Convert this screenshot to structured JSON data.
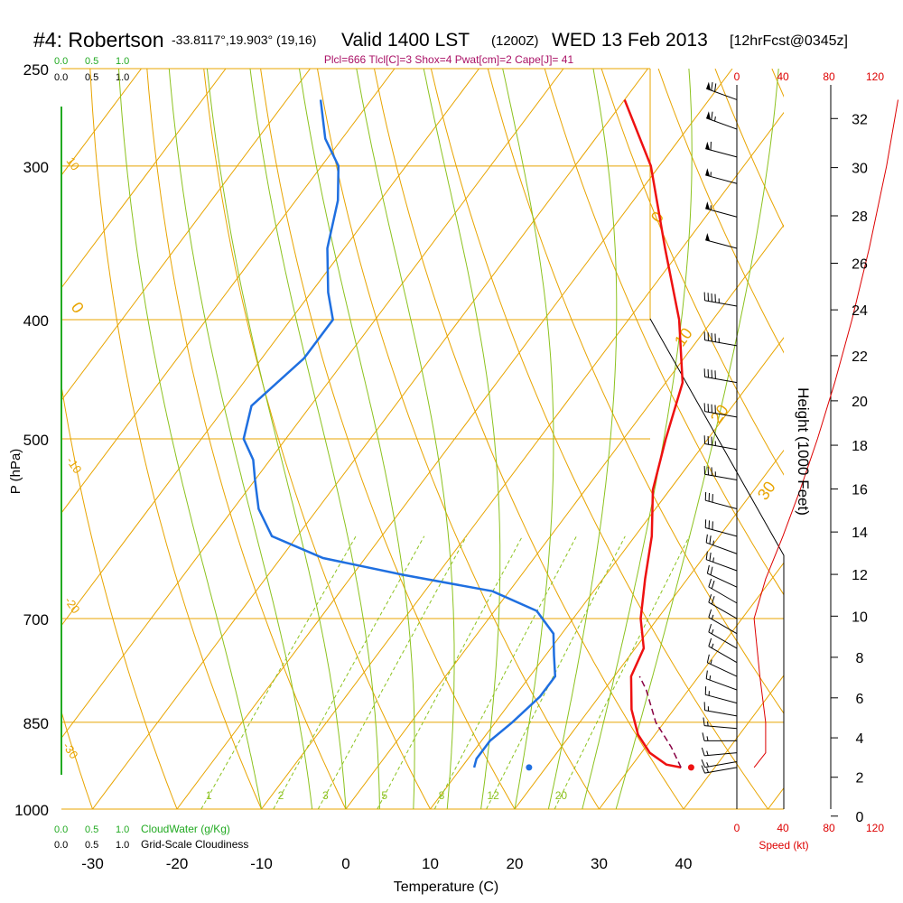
{
  "header": {
    "station": "#4: Robertson",
    "coords": "-33.8117°,19.903° (19,16)",
    "valid": "Valid 1400 LST",
    "utc": "(1200Z)",
    "date": "WED 13 Feb 2013",
    "forecast": "[12hrFcst@0345z]",
    "indices": "Plcl=666 Tlcl[C]=3 Shox=4 Pwat[cm]=2 Cape[J]= 41"
  },
  "colors": {
    "isotherm": "#e8a400",
    "dry_adiabat": "#e8a400",
    "moist_adiabat": "#8cc21e",
    "mixing_ratio": "#8cc21e",
    "temperature": "#ee1111",
    "dewpoint": "#1f6fe0",
    "cloud_axis": "#22aa22",
    "index_text": "#aa1166",
    "parcel": "#880044",
    "wind_speed": "#dd0000"
  },
  "chart_data": {
    "type": "line",
    "title": "#4: Robertson",
    "xlabel": "Temperature (C)",
    "ylabel": "P (hPa)",
    "y2label": "Height (1000 Feet)",
    "speed_label": "Speed (kt)",
    "xlim": [
      -35,
      50
    ],
    "ylim": [
      1000,
      250
    ],
    "x_ticks": [
      "-30",
      "-20",
      "-10",
      "0",
      "10",
      "20",
      "30",
      "40"
    ],
    "pressure_levels": [
      250,
      300,
      400,
      500,
      700,
      850,
      1000
    ],
    "height_ticks": [
      "0",
      "2",
      "4",
      "6",
      "8",
      "10",
      "12",
      "14",
      "16",
      "18",
      "20",
      "22",
      "24",
      "26",
      "28",
      "30",
      "32"
    ],
    "speed_ticks": [
      "0",
      "40",
      "80",
      "120"
    ],
    "cloud_scale_labels": [
      "0.0",
      "0.5",
      "1.0"
    ],
    "cloudwater_label": "CloudWater (g/Kg)",
    "cloudiness_label": "Grid-Scale Cloudiness",
    "mixing_ratio_labels": [
      "1",
      "2",
      "3",
      "5",
      "8",
      "12",
      "20"
    ],
    "dry_adiabat_labels": [
      "-10",
      "0",
      "10",
      "20",
      "30"
    ],
    "isotherm_labels": [
      "10",
      "0",
      "-10",
      "-20",
      "-30"
    ],
    "series": [
      {
        "name": "Temperature",
        "points": [
          [
            36,
            925
          ],
          [
            34,
            920
          ],
          [
            31,
            900
          ],
          [
            28,
            870
          ],
          [
            25,
            830
          ],
          [
            22,
            780
          ],
          [
            21,
            740
          ],
          [
            18,
            700
          ],
          [
            15,
            650
          ],
          [
            12,
            600
          ],
          [
            8,
            550
          ],
          [
            5,
            500
          ],
          [
            2,
            450
          ],
          [
            -4,
            400
          ],
          [
            -12,
            350
          ],
          [
            -21,
            300
          ],
          [
            -30,
            265
          ]
        ]
      },
      {
        "name": "Dewpoint",
        "points": [
          [
            11.5,
            925
          ],
          [
            11,
            910
          ],
          [
            11,
            880
          ],
          [
            12,
            850
          ],
          [
            13,
            810
          ],
          [
            13,
            780
          ],
          [
            11,
            750
          ],
          [
            9,
            720
          ],
          [
            5,
            690
          ],
          [
            -2,
            665
          ],
          [
            -14,
            645
          ],
          [
            -25,
            625
          ],
          [
            -33,
            600
          ],
          [
            -37,
            570
          ],
          [
            -40,
            540
          ],
          [
            -42,
            520
          ],
          [
            -45,
            500
          ],
          [
            -47,
            470
          ],
          [
            -45,
            430
          ],
          [
            -45,
            400
          ],
          [
            -48,
            380
          ],
          [
            -52,
            350
          ],
          [
            -55,
            320
          ],
          [
            -58,
            300
          ],
          [
            -62,
            285
          ],
          [
            -66,
            265
          ]
        ]
      },
      {
        "name": "Parcel",
        "points": [
          [
            36,
            925
          ],
          [
            33,
            890
          ],
          [
            29,
            850
          ],
          [
            25,
            800
          ],
          [
            23,
            780
          ]
        ]
      }
    ],
    "surface_markers": [
      {
        "name": "surface temperature",
        "x": 37.2,
        "p": 925
      },
      {
        "name": "surface dewpoint",
        "x": 18,
        "p": 925
      }
    ],
    "wind_speed_profile": [
      [
        3,
        925
      ],
      [
        5,
        900
      ],
      [
        5,
        850
      ],
      [
        4,
        780
      ],
      [
        3,
        700
      ],
      [
        5,
        650
      ],
      [
        8,
        600
      ],
      [
        11,
        550
      ],
      [
        14,
        500
      ],
      [
        17,
        450
      ],
      [
        20,
        400
      ],
      [
        23,
        350
      ],
      [
        26,
        300
      ],
      [
        28,
        265
      ]
    ],
    "wind_barbs": [
      {
        "p": 265,
        "dir": 290,
        "spd": 70
      },
      {
        "p": 280,
        "dir": 290,
        "spd": 65
      },
      {
        "p": 295,
        "dir": 285,
        "spd": 60
      },
      {
        "p": 310,
        "dir": 285,
        "spd": 55
      },
      {
        "p": 330,
        "dir": 285,
        "spd": 55
      },
      {
        "p": 350,
        "dir": 285,
        "spd": 50
      },
      {
        "p": 390,
        "dir": 280,
        "spd": 45
      },
      {
        "p": 420,
        "dir": 280,
        "spd": 45
      },
      {
        "p": 450,
        "dir": 280,
        "spd": 40
      },
      {
        "p": 480,
        "dir": 280,
        "spd": 40
      },
      {
        "p": 510,
        "dir": 280,
        "spd": 35
      },
      {
        "p": 540,
        "dir": 280,
        "spd": 35
      },
      {
        "p": 570,
        "dir": 285,
        "spd": 30
      },
      {
        "p": 600,
        "dir": 285,
        "spd": 30
      },
      {
        "p": 620,
        "dir": 290,
        "spd": 25
      },
      {
        "p": 640,
        "dir": 290,
        "spd": 25
      },
      {
        "p": 660,
        "dir": 295,
        "spd": 20
      },
      {
        "p": 680,
        "dir": 300,
        "spd": 20
      },
      {
        "p": 700,
        "dir": 300,
        "spd": 20
      },
      {
        "p": 720,
        "dir": 300,
        "spd": 15
      },
      {
        "p": 740,
        "dir": 300,
        "spd": 15
      },
      {
        "p": 760,
        "dir": 300,
        "spd": 15
      },
      {
        "p": 780,
        "dir": 295,
        "spd": 15
      },
      {
        "p": 800,
        "dir": 290,
        "spd": 15
      },
      {
        "p": 820,
        "dir": 285,
        "spd": 15
      },
      {
        "p": 840,
        "dir": 280,
        "spd": 15
      },
      {
        "p": 860,
        "dir": 275,
        "spd": 15
      },
      {
        "p": 880,
        "dir": 270,
        "spd": 15
      },
      {
        "p": 900,
        "dir": 265,
        "spd": 15
      },
      {
        "p": 915,
        "dir": 260,
        "spd": 15
      },
      {
        "p": 925,
        "dir": 260,
        "spd": 15
      }
    ]
  }
}
